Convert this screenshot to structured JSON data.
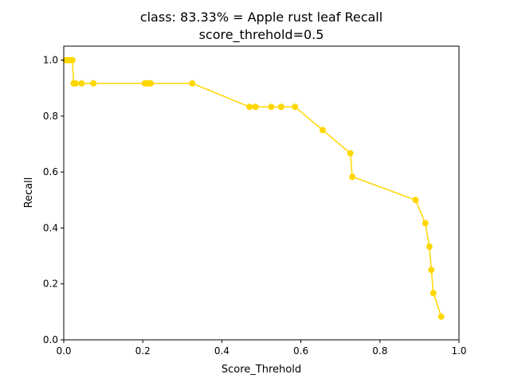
{
  "chart_data": {
    "type": "line",
    "title_line1": "class: 83.33% = Apple rust leaf Recall",
    "title_line2": "score_threhold=0.5",
    "xlabel": "Score_Threhold",
    "ylabel": "Recall",
    "xlim": [
      0.0,
      1.0
    ],
    "ylim": [
      0.0,
      1.05
    ],
    "xticks": [
      "0.0",
      "0.2",
      "0.4",
      "0.6",
      "0.8",
      "1.0"
    ],
    "yticks": [
      "0.0",
      "0.2",
      "0.4",
      "0.6",
      "0.8",
      "1.0"
    ],
    "grid": false,
    "line_color": "#FFD700",
    "series": [
      {
        "x": [
          0.005,
          0.01,
          0.015,
          0.02,
          0.022,
          0.025,
          0.03,
          0.045,
          0.075,
          0.205,
          0.21,
          0.215,
          0.22,
          0.325,
          0.47,
          0.485,
          0.525,
          0.55,
          0.585,
          0.655,
          0.725,
          0.73,
          0.89,
          0.915,
          0.925,
          0.93,
          0.935,
          0.955
        ],
        "y": [
          1.0,
          1.0,
          1.0,
          1.0,
          1.0,
          0.917,
          0.917,
          0.917,
          0.917,
          0.917,
          0.917,
          0.917,
          0.917,
          0.917,
          0.833,
          0.833,
          0.833,
          0.833,
          0.833,
          0.75,
          0.667,
          0.583,
          0.5,
          0.417,
          0.333,
          0.25,
          0.167,
          0.083
        ]
      }
    ]
  }
}
